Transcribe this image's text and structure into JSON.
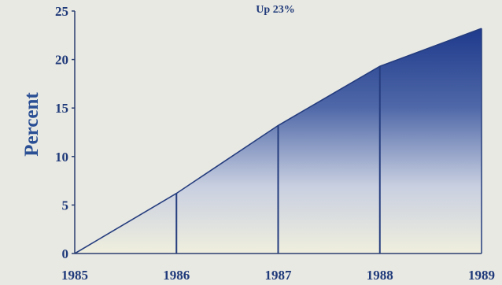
{
  "chart_data": {
    "type": "area",
    "title": "",
    "annotation": "Up 23%",
    "xlabel": "",
    "ylabel": "Percent",
    "x": [
      "1985",
      "1986",
      "1987",
      "1988",
      "1989"
    ],
    "values": [
      0,
      6.2,
      13.2,
      19.3,
      23.2
    ],
    "ylim": [
      0,
      25
    ],
    "yticks": [
      0,
      5,
      10,
      15,
      20,
      25
    ],
    "grid": false,
    "colors": {
      "fill_top": "#233f8e",
      "fill_bottom": "#efeede",
      "text": "#1f3a7a",
      "axis": "#2a3f70"
    }
  }
}
